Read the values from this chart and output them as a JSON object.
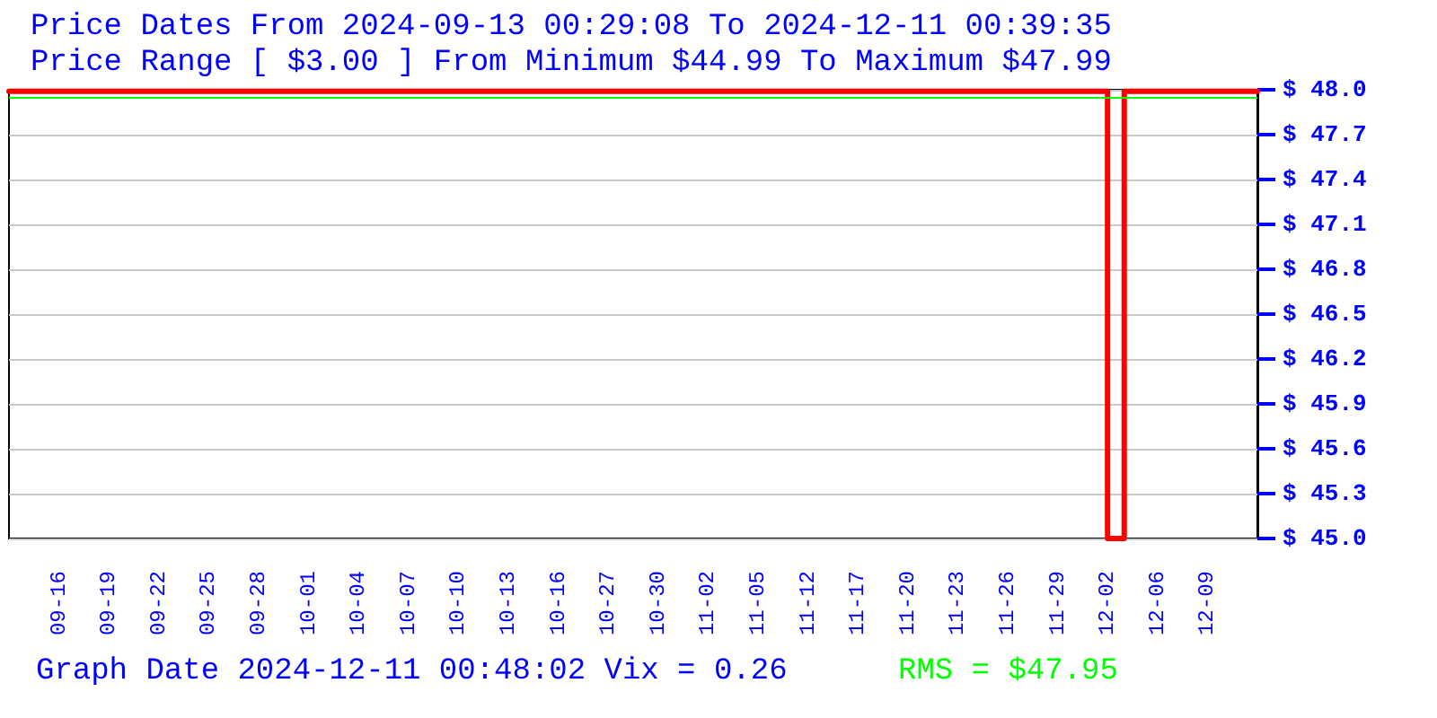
{
  "chart_data": {
    "type": "step",
    "title": "Price Dates From 2024-09-13 00:29:08 To 2024-12-11 00:39:35",
    "subtitle": "Price Range [ $3.00 ] From Minimum $44.99 To Maximum $47.99",
    "annotations": [
      "Graph Date 2024-12-11 00:48:02 Vix = 0.26"
    ],
    "categories": [
      null,
      null,
      null,
      "09-16",
      null,
      null,
      "09-19",
      null,
      null,
      "09-22",
      null,
      null,
      "09-25",
      null,
      null,
      "09-28",
      null,
      null,
      "10-01",
      null,
      null,
      "10-04",
      null,
      null,
      "10-07",
      null,
      null,
      "10-10",
      null,
      null,
      "10-13",
      null,
      null,
      "10-16",
      null,
      null,
      "10-27",
      null,
      null,
      "10-30",
      null,
      null,
      "11-02",
      null,
      null,
      "11-05",
      null,
      null,
      "11-12",
      null,
      null,
      "11-17",
      null,
      null,
      "11-20",
      null,
      null,
      "11-23",
      null,
      null,
      "11-26",
      null,
      null,
      "11-29",
      null,
      null,
      "12-02",
      null,
      null,
      "12-06",
      null,
      null,
      "12-09",
      null,
      null,
      null
    ],
    "series": [
      {
        "color": "#ff0000",
        "values": [
          47.99,
          47.99,
          47.99,
          47.99,
          47.99,
          47.99,
          47.99,
          47.99,
          47.99,
          47.99,
          47.99,
          47.99,
          47.99,
          47.99,
          47.99,
          47.99,
          47.99,
          47.99,
          47.99,
          47.99,
          47.99,
          47.99,
          47.99,
          47.99,
          47.99,
          47.99,
          47.99,
          47.99,
          47.99,
          47.99,
          47.99,
          47.99,
          47.99,
          47.99,
          47.99,
          47.99,
          47.99,
          47.99,
          47.99,
          47.99,
          47.99,
          47.99,
          47.99,
          47.99,
          47.99,
          47.99,
          47.99,
          47.99,
          47.99,
          47.99,
          47.99,
          47.99,
          47.99,
          47.99,
          47.99,
          47.99,
          47.99,
          47.99,
          47.99,
          47.99,
          47.99,
          47.99,
          47.99,
          47.99,
          47.99,
          47.99,
          47.99,
          45,
          47.99,
          47.99,
          47.99,
          47.99,
          47.99,
          47.99,
          47.99,
          47.99
        ]
      }
    ],
    "ylim": [
      45,
      48
    ],
    "yticks": [
      {
        "value": 45,
        "label": "$ 45.0"
      },
      {
        "value": 45.3,
        "label": "$ 45.3"
      },
      {
        "value": 45.6,
        "label": "$ 45.6"
      },
      {
        "value": 45.9,
        "label": "$ 45.9"
      },
      {
        "value": 46.2,
        "label": "$ 46.2"
      },
      {
        "value": 46.5,
        "label": "$ 46.5"
      },
      {
        "value": 46.8,
        "label": "$ 46.8"
      },
      {
        "value": 47.1,
        "label": "$ 47.1"
      },
      {
        "value": 47.4,
        "label": "$ 47.4"
      },
      {
        "value": 47.7,
        "label": "$ 47.7"
      },
      {
        "value": 48,
        "label": "$ 48.0"
      }
    ],
    "grid": "y",
    "ref_lines": [
      {
        "axis": "y",
        "value": 47.95,
        "label": "RMS = $47.95",
        "color": "#00ff00"
      }
    ],
    "marker": "none"
  }
}
